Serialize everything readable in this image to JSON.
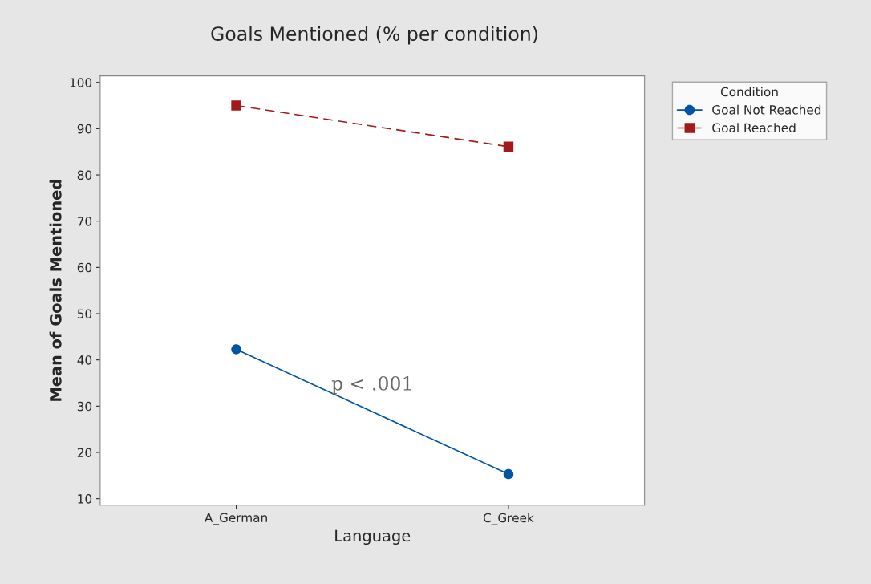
{
  "chart_data": {
    "type": "line",
    "title": "Goals Mentioned (% per condition)",
    "xlabel": "Language",
    "ylabel": "Mean of Goals Mentioned",
    "legend_title": "Condition",
    "categories": [
      "A_German",
      "C_Greek"
    ],
    "series": [
      {
        "name": "Goal Not Reached",
        "color": "#0054a6",
        "values": [
          42.3,
          15.3
        ],
        "marker": "circle",
        "line_style": "solid"
      },
      {
        "name": "Goal Reached",
        "color": "#a31a1a",
        "values": [
          95,
          86.1
        ],
        "marker": "square",
        "line_style": "dashed"
      }
    ],
    "ylim": [
      8.6,
      101.4
    ],
    "yticks": [
      10,
      20,
      30,
      40,
      50,
      60,
      70,
      80,
      90,
      100
    ],
    "grid": false,
    "legend": "top right",
    "annotations": [
      "p < .001"
    ]
  }
}
